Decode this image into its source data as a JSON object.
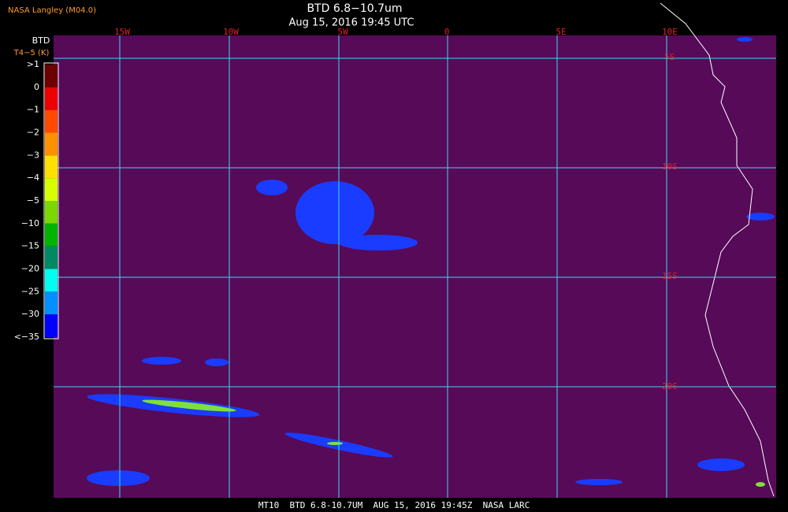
{
  "header": {
    "source": "NASA Langley (M04.0)",
    "title": "BTD 6.8−10.7um",
    "datetime": "Aug 15, 2016 19:45 UTC"
  },
  "colorbar": {
    "title": "BTD",
    "units": "T4−5 (K)",
    "labels": [
      ">1",
      "0",
      "−1",
      "−2",
      "−3",
      "−4",
      "−5",
      "−10",
      "−15",
      "−20",
      "−25",
      "−30",
      "<−35"
    ]
  },
  "longitude_labels": [
    "15W",
    "10W",
    "5W",
    "0",
    "5E",
    "10E"
  ],
  "latitude_labels": [
    "5S",
    "10S",
    "15S",
    "20S"
  ],
  "footer": {
    "text": "MT10  BTD 6.8-10.7UM  AUG 15, 2016 19:45Z  NASA LARC"
  }
}
